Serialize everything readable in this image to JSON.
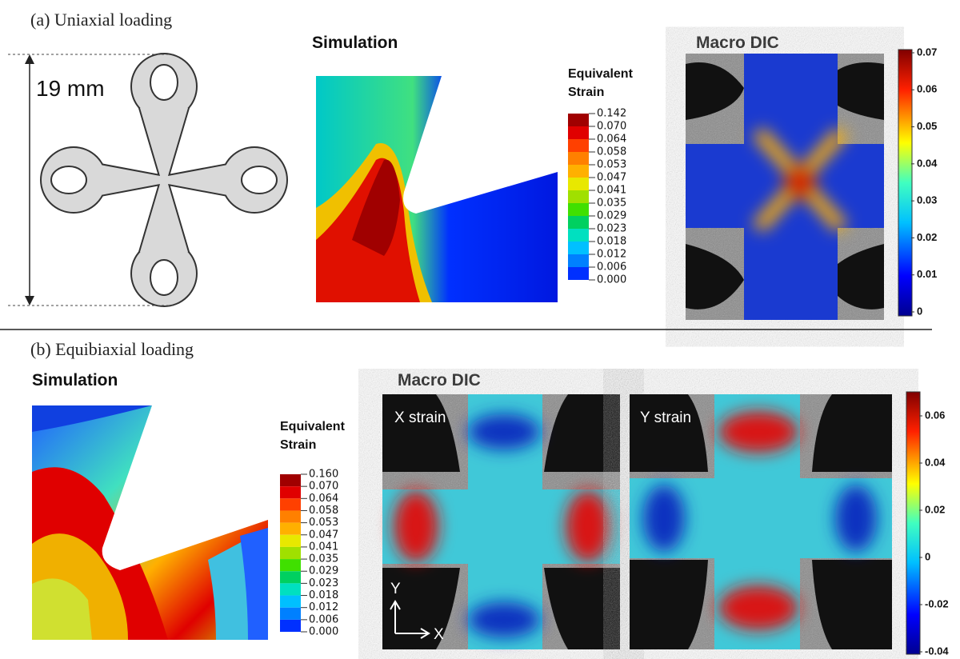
{
  "panel_a": {
    "label": "(a) Uniaxial loading",
    "dimension": "19 mm",
    "simulation": {
      "title": "Simulation",
      "legend_title": [
        "Equivalent",
        "Strain"
      ],
      "legend_labels": [
        "0.142",
        "0.070",
        "0.064",
        "0.058",
        "0.053",
        "0.047",
        "0.041",
        "0.035",
        "0.029",
        "0.023",
        "0.018",
        "0.012",
        "0.006",
        "0.000"
      ]
    },
    "dic": {
      "title": "Macro DIC",
      "colorbar_labels": [
        "0.07",
        "0.06",
        "0.05",
        "0.04",
        "0.03",
        "0.02",
        "0.01",
        "0"
      ]
    }
  },
  "panel_b": {
    "label": "(b) Equibiaxial loading",
    "simulation": {
      "title": "Simulation",
      "legend_title": [
        "Equivalent",
        "Strain"
      ],
      "legend_labels": [
        "0.160",
        "0.070",
        "0.064",
        "0.058",
        "0.053",
        "0.047",
        "0.041",
        "0.035",
        "0.029",
        "0.023",
        "0.018",
        "0.012",
        "0.006",
        "0.000"
      ]
    },
    "dic": {
      "title": "Macro DIC",
      "x_label": "X strain",
      "y_label": "Y strain",
      "axis_y": "Y",
      "axis_x": "X",
      "colorbar_labels": [
        "0.06",
        "0.04",
        "0.02",
        "0",
        "-0.02",
        "-0.04"
      ]
    }
  }
}
